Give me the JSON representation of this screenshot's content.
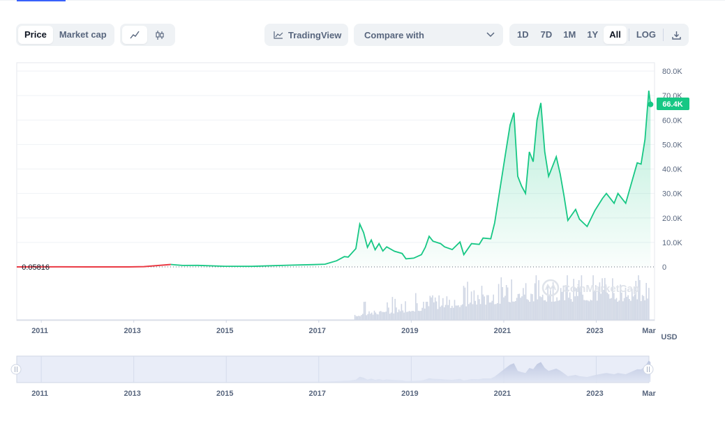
{
  "toolbar": {
    "metric_tabs": [
      {
        "label": "Price",
        "active": true
      },
      {
        "label": "Market cap",
        "active": false
      }
    ],
    "chart_type_icons": [
      "line-chart-icon",
      "candlestick-icon"
    ],
    "tradingview_label": "TradingView",
    "compare_label": "Compare with",
    "ranges": [
      {
        "label": "1D",
        "active": false
      },
      {
        "label": "7D",
        "active": false
      },
      {
        "label": "1M",
        "active": false
      },
      {
        "label": "1Y",
        "active": false
      },
      {
        "label": "All",
        "active": true
      }
    ],
    "log_label": "LOG",
    "download_icon": "download-icon"
  },
  "colors": {
    "line": "#16c784",
    "early_line": "#ea3943",
    "grid": "#eff2f5",
    "axis_text": "#58667e",
    "volume": "#cfd6e4"
  },
  "watermark": "CoinMarketCap",
  "chart_data": {
    "type": "area",
    "currency_label": "USD",
    "y_ticks": [
      "80.0K",
      "70.0K",
      "60.0K",
      "50.0K",
      "40.0K",
      "30.0K",
      "20.0K",
      "10.0K",
      "0"
    ],
    "ylim": [
      0,
      80000
    ],
    "x_ticks": [
      "2011",
      "2013",
      "2015",
      "2017",
      "2019",
      "2021",
      "2023",
      "Mar"
    ],
    "start_price_label": "0.05816",
    "current_price_label": "66.4K",
    "series": [
      {
        "values": [
          [
            "2010-07",
            0.06
          ],
          [
            "2011-06",
            15
          ],
          [
            "2012-12",
            13
          ],
          [
            "2013-04",
            120
          ],
          [
            "2013-11",
            1000
          ],
          [
            "2014-02",
            600
          ],
          [
            "2014-06",
            630
          ],
          [
            "2015-01",
            250
          ],
          [
            "2015-08",
            230
          ],
          [
            "2016-06",
            700
          ],
          [
            "2016-12",
            950
          ],
          [
            "2017-03",
            1100
          ],
          [
            "2017-06",
            2500
          ],
          [
            "2017-08",
            4200
          ],
          [
            "2017-09",
            4000
          ],
          [
            "2017-11",
            7500
          ],
          [
            "2017-12",
            17500
          ],
          [
            "2018-01",
            14000
          ],
          [
            "2018-02",
            8000
          ],
          [
            "2018-03",
            11000
          ],
          [
            "2018-04",
            7000
          ],
          [
            "2018-05",
            9500
          ],
          [
            "2018-06",
            6500
          ],
          [
            "2018-07",
            8200
          ],
          [
            "2018-09",
            6400
          ],
          [
            "2018-11",
            5500
          ],
          [
            "2018-12",
            3300
          ],
          [
            "2019-02",
            3600
          ],
          [
            "2019-04",
            5000
          ],
          [
            "2019-05",
            8000
          ],
          [
            "2019-06",
            12500
          ],
          [
            "2019-07",
            10500
          ],
          [
            "2019-09",
            9500
          ],
          [
            "2019-10",
            8200
          ],
          [
            "2019-12",
            7100
          ],
          [
            "2020-02",
            10200
          ],
          [
            "2020-03",
            5000
          ],
          [
            "2020-05",
            9500
          ],
          [
            "2020-07",
            9200
          ],
          [
            "2020-08",
            11800
          ],
          [
            "2020-10",
            11500
          ],
          [
            "2020-11",
            18000
          ],
          [
            "2020-12",
            28000
          ],
          [
            "2021-01",
            38000
          ],
          [
            "2021-02",
            48000
          ],
          [
            "2021-03",
            58000
          ],
          [
            "2021-04",
            63000
          ],
          [
            "2021-05",
            37000
          ],
          [
            "2021-06",
            33000
          ],
          [
            "2021-07",
            30000
          ],
          [
            "2021-08",
            47000
          ],
          [
            "2021-09",
            43000
          ],
          [
            "2021-10",
            60000
          ],
          [
            "2021-11",
            67000
          ],
          [
            "2021-12",
            47000
          ],
          [
            "2022-01",
            37000
          ],
          [
            "2022-03",
            45000
          ],
          [
            "2022-04",
            38000
          ],
          [
            "2022-05",
            29000
          ],
          [
            "2022-06",
            19000
          ],
          [
            "2022-08",
            23500
          ],
          [
            "2022-09",
            19500
          ],
          [
            "2022-11",
            16500
          ],
          [
            "2023-01",
            23000
          ],
          [
            "2023-03",
            28000
          ],
          [
            "2023-04",
            30000
          ],
          [
            "2023-06",
            26000
          ],
          [
            "2023-07",
            30000
          ],
          [
            "2023-09",
            26000
          ],
          [
            "2023-11",
            37000
          ],
          [
            "2023-12",
            42500
          ],
          [
            "2024-01",
            42000
          ],
          [
            "2024-02",
            52000
          ],
          [
            "2024-03",
            72000
          ],
          [
            "2024-03-15",
            66400
          ]
        ]
      }
    ],
    "volume_note": "bars"
  }
}
